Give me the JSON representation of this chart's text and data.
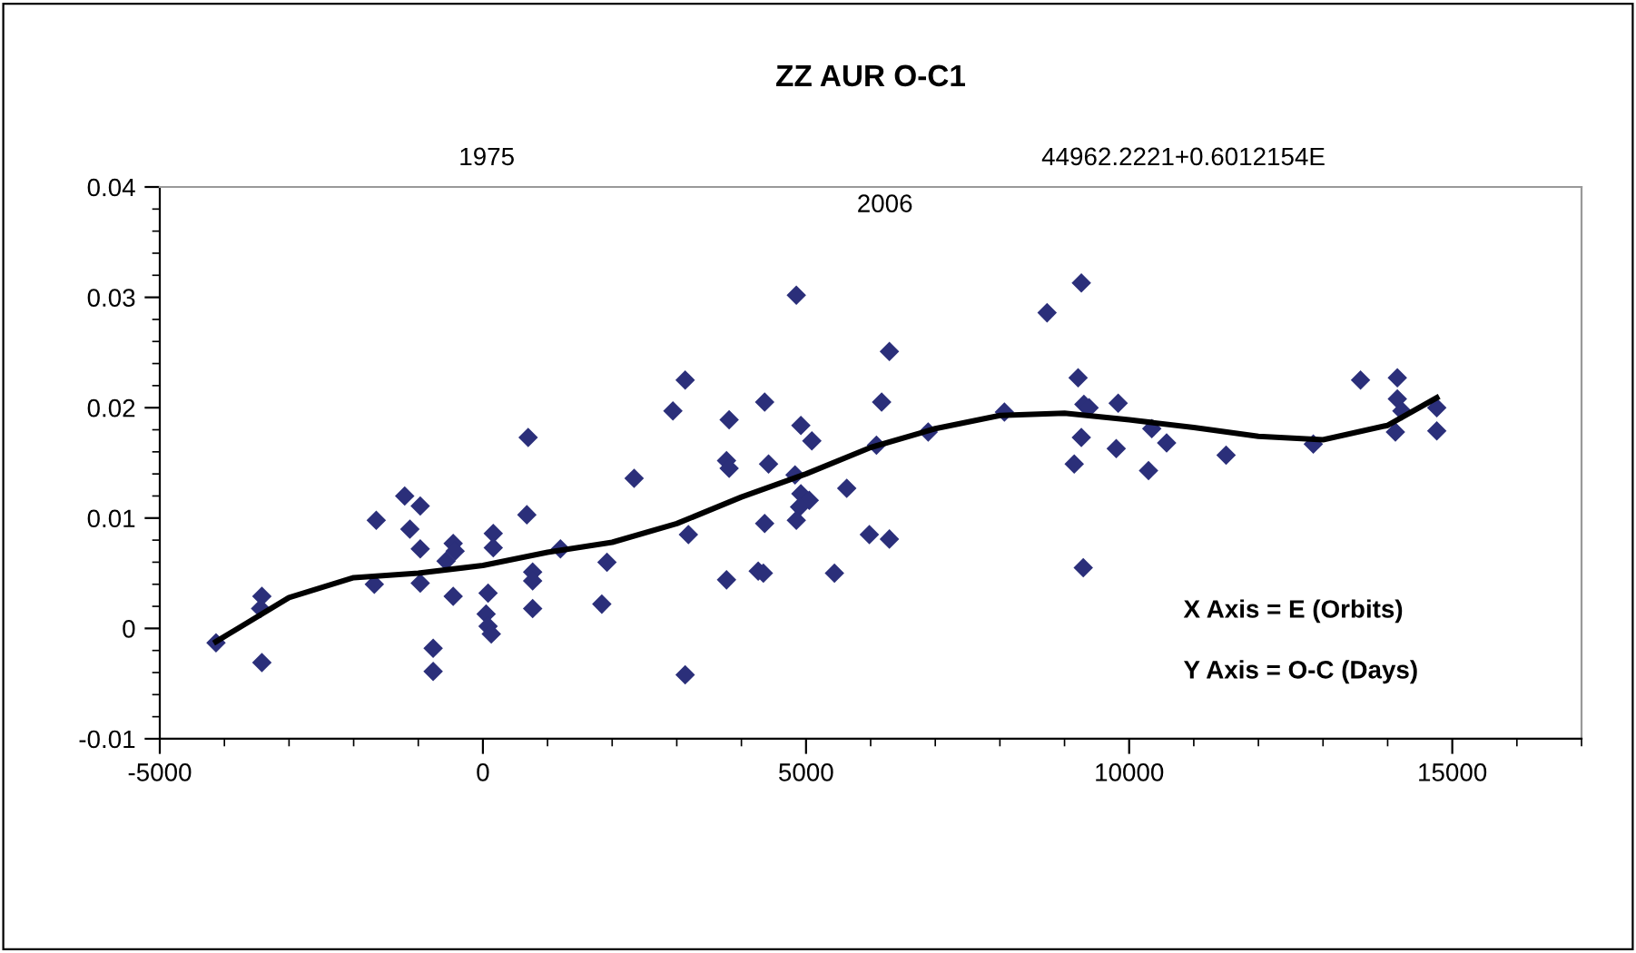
{
  "chart_data": {
    "type": "scatter",
    "title": "ZZ AUR O-C1",
    "xlim": [
      -5000,
      17000
    ],
    "xticks": [
      -5000,
      0,
      5000,
      10000,
      15000
    ],
    "ylim": [
      -0.01,
      0.04
    ],
    "yticks": [
      -0.01,
      0,
      0.01,
      0.02,
      0.03,
      0.04
    ],
    "grid": false,
    "annotations": [
      "1975",
      "44962.2221+0.6012154E",
      "2006",
      "X Axis = E (Orbits)",
      "Y Axis = O-C (Days)"
    ],
    "series": [
      {
        "marker": "diamond",
        "color": "#2b2f7a",
        "x": [
          -4130,
          -3420,
          -3440,
          -3420,
          -1650,
          -1680,
          -1210,
          -970,
          -1130,
          -970,
          -970,
          -770,
          -770,
          -460,
          -430,
          -570,
          -460,
          160,
          160,
          80,
          50,
          80,
          130,
          700,
          680,
          770,
          770,
          770,
          1200,
          1840,
          1920,
          2340,
          3130,
          2940,
          3180,
          3130,
          3810,
          3770,
          3810,
          3770,
          4360,
          4420,
          4360,
          4260,
          4340,
          4850,
          4920,
          5090,
          4830,
          4920,
          5050,
          4900,
          4850,
          5440,
          5630,
          5980,
          6290,
          6290,
          6170,
          6090,
          6890,
          8070,
          8730,
          9260,
          9210,
          9300,
          9380,
          9260,
          9150,
          9290,
          9830,
          9800,
          10350,
          10580,
          10300,
          11500,
          12850,
          13580,
          14150,
          14150,
          14220,
          14120,
          14760,
          14760
        ],
        "values": [
          -0.0013,
          0.0029,
          0.0018,
          -0.0031,
          0.0098,
          0.004,
          0.012,
          0.0111,
          0.009,
          0.0072,
          0.0041,
          -0.0018,
          -0.0039,
          0.0077,
          0.007,
          0.0061,
          0.0029,
          0.0086,
          0.0073,
          0.0032,
          0.0013,
          0.0002,
          -0.0005,
          0.0173,
          0.0103,
          0.0051,
          0.0043,
          0.0018,
          0.0072,
          0.0022,
          0.006,
          0.0136,
          0.0225,
          0.0197,
          0.0085,
          -0.0042,
          0.0189,
          0.0152,
          0.0145,
          0.0044,
          0.0205,
          0.0149,
          0.0095,
          0.0052,
          0.005,
          0.0302,
          0.0184,
          0.017,
          0.0139,
          0.0122,
          0.0116,
          0.011,
          0.0098,
          0.005,
          0.0127,
          0.0085,
          0.0081,
          0.0251,
          0.0205,
          0.0166,
          0.0178,
          0.0196,
          0.0286,
          0.0313,
          0.0227,
          0.0203,
          0.02,
          0.0173,
          0.0149,
          0.0055,
          0.0204,
          0.0163,
          0.0181,
          0.0168,
          0.0143,
          0.0157,
          0.0167,
          0.0225,
          0.0227,
          0.0208,
          0.0197,
          0.0178,
          0.02,
          0.0179
        ]
      },
      {
        "type": "line",
        "marker": "none",
        "line_style": "solid",
        "color": "#000000",
        "x": [
          -4130,
          -3000,
          -2000,
          -1000,
          0,
          1000,
          2000,
          3000,
          4000,
          5000,
          6000,
          7000,
          8000,
          9000,
          10000,
          11000,
          12000,
          13000,
          14000,
          14760
        ],
        "values": [
          -0.0012,
          0.0028,
          0.0046,
          0.005,
          0.0057,
          0.0069,
          0.0078,
          0.0095,
          0.0119,
          0.014,
          0.0164,
          0.0181,
          0.0193,
          0.0195,
          0.0189,
          0.0182,
          0.0174,
          0.0171,
          0.0184,
          0.0209
        ]
      }
    ]
  }
}
